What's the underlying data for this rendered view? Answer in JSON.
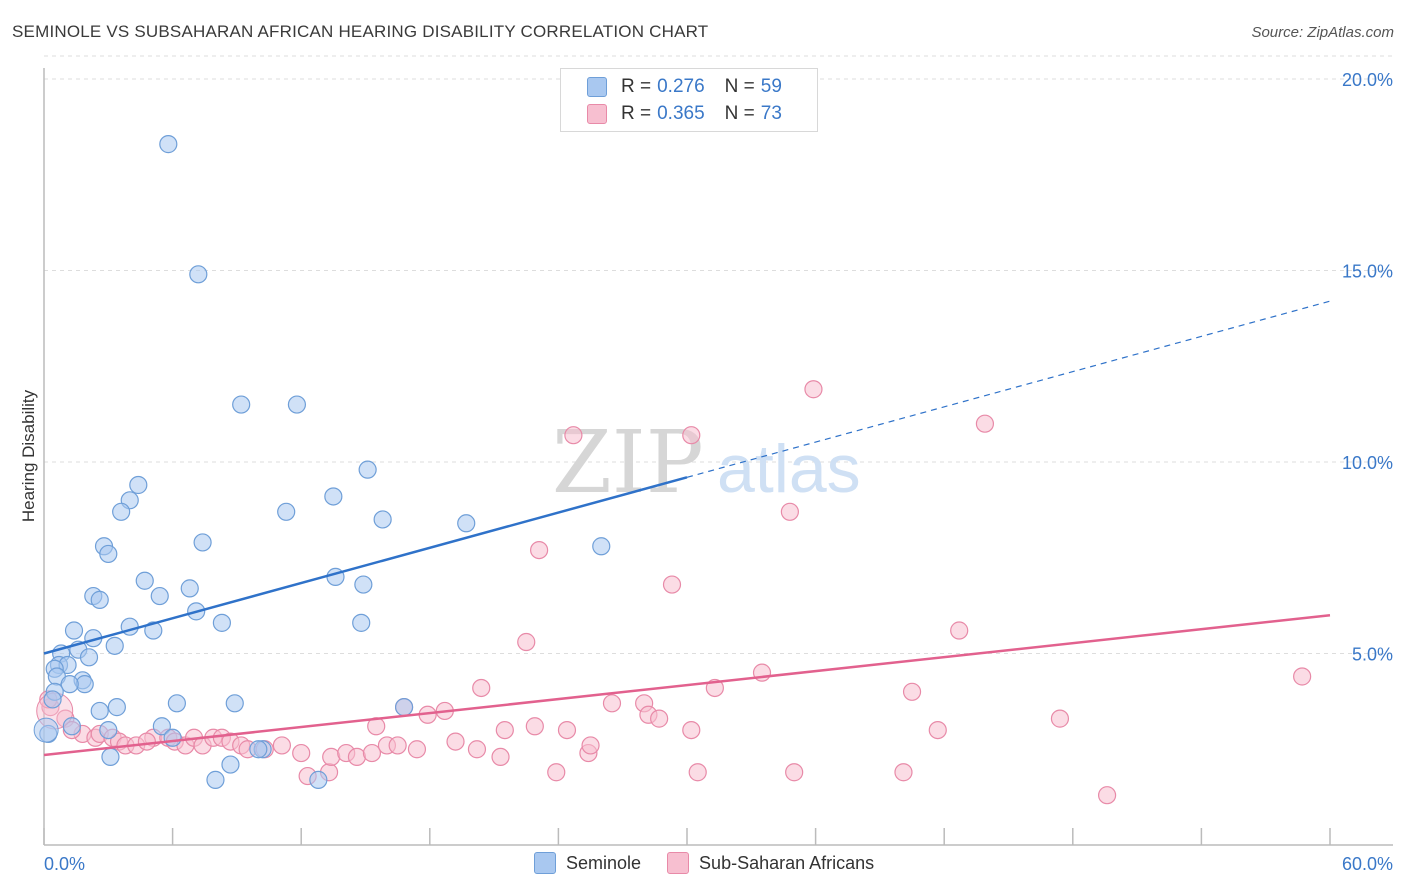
{
  "title": "SEMINOLE VS SUBSAHARAN AFRICAN HEARING DISABILITY CORRELATION CHART",
  "source": "Source: ZipAtlas.com",
  "legend_top": {
    "row1": {
      "r_label": "R =",
      "r_value": "0.276",
      "n_label": "N =",
      "n_value": "59"
    },
    "row2": {
      "r_label": "R =",
      "r_value": "0.365",
      "n_label": "N =",
      "n_value": "73"
    }
  },
  "colors": {
    "seminole_fill": "#a9c8f0",
    "seminole_stroke": "#6f9fd8",
    "seminole_line": "#2f72c9",
    "african_fill": "#f7bfd0",
    "african_stroke": "#e88aa8",
    "african_line": "#e2618e",
    "axis_label": "#3a78c8",
    "grid": "#dddddd"
  },
  "chart_data": {
    "type": "scatter",
    "title": "SEMINOLE VS SUBSAHARAN AFRICAN HEARING DISABILITY CORRELATION CHART",
    "ylabel": "Hearing Disability",
    "xlabel": "",
    "xlim": [
      0,
      60
    ],
    "ylim": [
      0,
      20
    ],
    "x_tick_labels": [
      "0.0%",
      "60.0%"
    ],
    "y_ticks": [
      5,
      10,
      15,
      20
    ],
    "y_tick_labels": [
      "5.0%",
      "10.0%",
      "15.0%",
      "20.0%"
    ],
    "watermark": {
      "zip": "ZIP",
      "atlas": "atlas"
    },
    "series": [
      {
        "name": "Seminole",
        "r": 0.276,
        "n": 59,
        "trend": {
          "x0": 0,
          "y0": 5.0,
          "x1": 30,
          "y1": 9.6,
          "dash_to_x": 60,
          "dash_to_y": 14.2
        },
        "points": [
          [
            5.8,
            18.3
          ],
          [
            7.2,
            14.9
          ],
          [
            9.2,
            11.5
          ],
          [
            11.8,
            11.5
          ],
          [
            15.1,
            9.8
          ],
          [
            4.4,
            9.4
          ],
          [
            4.0,
            9.0
          ],
          [
            3.6,
            8.7
          ],
          [
            13.5,
            9.1
          ],
          [
            11.3,
            8.7
          ],
          [
            15.8,
            8.5
          ],
          [
            19.7,
            8.4
          ],
          [
            2.8,
            7.8
          ],
          [
            7.4,
            7.9
          ],
          [
            3.0,
            7.6
          ],
          [
            26.0,
            7.8
          ],
          [
            4.7,
            6.9
          ],
          [
            6.8,
            6.7
          ],
          [
            5.4,
            6.5
          ],
          [
            2.3,
            6.5
          ],
          [
            2.6,
            6.4
          ],
          [
            13.6,
            7.0
          ],
          [
            14.9,
            6.8
          ],
          [
            7.1,
            6.1
          ],
          [
            8.3,
            5.8
          ],
          [
            14.8,
            5.8
          ],
          [
            4.0,
            5.7
          ],
          [
            5.1,
            5.6
          ],
          [
            1.4,
            5.6
          ],
          [
            2.3,
            5.4
          ],
          [
            1.6,
            5.1
          ],
          [
            3.3,
            5.2
          ],
          [
            0.8,
            5.0
          ],
          [
            2.1,
            4.9
          ],
          [
            0.7,
            4.7
          ],
          [
            1.1,
            4.7
          ],
          [
            0.5,
            4.6
          ],
          [
            0.6,
            4.4
          ],
          [
            1.8,
            4.3
          ],
          [
            1.9,
            4.2
          ],
          [
            1.2,
            4.2
          ],
          [
            0.5,
            4.0
          ],
          [
            0.4,
            3.8
          ],
          [
            3.4,
            3.6
          ],
          [
            6.2,
            3.7
          ],
          [
            8.9,
            3.7
          ],
          [
            16.8,
            3.6
          ],
          [
            2.6,
            3.5
          ],
          [
            1.3,
            3.1
          ],
          [
            3.0,
            3.0
          ],
          [
            5.5,
            3.1
          ],
          [
            0.2,
            2.9
          ],
          [
            6.0,
            2.8
          ],
          [
            10.2,
            2.5
          ],
          [
            3.1,
            2.3
          ],
          [
            8.7,
            2.1
          ],
          [
            10.0,
            2.5
          ],
          [
            8.0,
            1.7
          ],
          [
            12.8,
            1.7
          ]
        ]
      },
      {
        "name": "Sub-Saharan Africans",
        "r": 0.365,
        "n": 73,
        "trend": {
          "x0": 0,
          "y0": 2.35,
          "x1": 60,
          "y1": 6.0
        },
        "points": [
          [
            35.9,
            11.9
          ],
          [
            24.7,
            10.7
          ],
          [
            30.2,
            10.7
          ],
          [
            43.9,
            11.0
          ],
          [
            34.8,
            8.7
          ],
          [
            23.1,
            7.7
          ],
          [
            29.3,
            6.8
          ],
          [
            42.7,
            5.6
          ],
          [
            22.5,
            5.3
          ],
          [
            33.5,
            4.5
          ],
          [
            58.7,
            4.4
          ],
          [
            20.4,
            4.1
          ],
          [
            31.3,
            4.1
          ],
          [
            40.5,
            4.0
          ],
          [
            26.5,
            3.7
          ],
          [
            28.0,
            3.7
          ],
          [
            18.7,
            3.5
          ],
          [
            17.9,
            3.4
          ],
          [
            28.2,
            3.4
          ],
          [
            28.7,
            3.3
          ],
          [
            47.4,
            3.3
          ],
          [
            15.5,
            3.1
          ],
          [
            21.5,
            3.0
          ],
          [
            30.2,
            3.0
          ],
          [
            24.4,
            3.0
          ],
          [
            41.7,
            3.0
          ],
          [
            22.9,
            3.1
          ],
          [
            0.3,
            3.6
          ],
          [
            1.0,
            3.3
          ],
          [
            1.8,
            2.9
          ],
          [
            2.4,
            2.8
          ],
          [
            2.6,
            2.9
          ],
          [
            3.2,
            2.8
          ],
          [
            3.5,
            2.7
          ],
          [
            3.8,
            2.6
          ],
          [
            4.3,
            2.6
          ],
          [
            5.1,
            2.8
          ],
          [
            4.8,
            2.7
          ],
          [
            5.8,
            2.8
          ],
          [
            6.1,
            2.7
          ],
          [
            6.6,
            2.6
          ],
          [
            7.0,
            2.8
          ],
          [
            7.4,
            2.6
          ],
          [
            7.9,
            2.8
          ],
          [
            8.3,
            2.8
          ],
          [
            8.7,
            2.7
          ],
          [
            9.2,
            2.6
          ],
          [
            9.5,
            2.5
          ],
          [
            10.3,
            2.5
          ],
          [
            11.1,
            2.6
          ],
          [
            12.0,
            2.4
          ],
          [
            12.3,
            1.8
          ],
          [
            13.3,
            1.9
          ],
          [
            13.4,
            2.3
          ],
          [
            14.1,
            2.4
          ],
          [
            14.6,
            2.3
          ],
          [
            15.3,
            2.4
          ],
          [
            16.0,
            2.6
          ],
          [
            16.5,
            2.6
          ],
          [
            17.4,
            2.5
          ],
          [
            19.2,
            2.7
          ],
          [
            20.2,
            2.5
          ],
          [
            21.3,
            2.3
          ],
          [
            23.9,
            1.9
          ],
          [
            25.4,
            2.4
          ],
          [
            25.5,
            2.6
          ],
          [
            30.5,
            1.9
          ],
          [
            35.0,
            1.9
          ],
          [
            40.1,
            1.9
          ],
          [
            49.6,
            1.3
          ],
          [
            16.8,
            3.6
          ],
          [
            0.2,
            3.8
          ],
          [
            1.3,
            3.0
          ]
        ]
      }
    ]
  },
  "bottom_legend": {
    "seminole": "Seminole",
    "african": "Sub-Saharan Africans"
  }
}
